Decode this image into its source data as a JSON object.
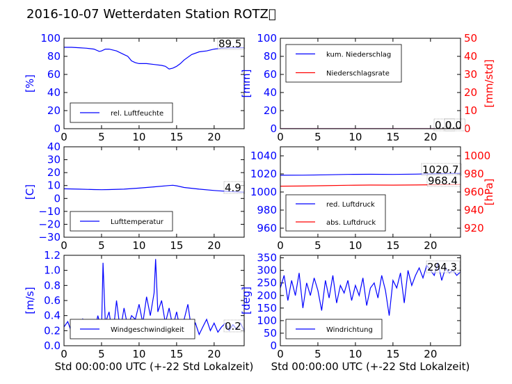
{
  "title": "2016-10-07 Wetterdaten Station ROTZ\u0000",
  "colors": {
    "primary": "#0000ff",
    "secondary": "#ff0000"
  },
  "chart_data": [
    {
      "type": "line",
      "xlim": [
        0,
        24
      ],
      "xticks": [
        "0",
        "5",
        "10",
        "15",
        "20"
      ],
      "ylim": [
        0,
        100
      ],
      "yticks": [
        "0",
        "20",
        "40",
        "60",
        "80",
        "100"
      ],
      "ylabel": "[%]",
      "legend": {
        "placement": "lower-left",
        "entries": [
          "rel. Luftfeuchte"
        ]
      },
      "annotations": [
        "89.5"
      ],
      "series": [
        {
          "name": "rel. Luftfeuchte",
          "color": "#0000ff",
          "x": [
            0,
            1,
            2,
            3,
            4,
            4.7,
            5,
            5.5,
            6,
            7,
            8,
            8.5,
            9,
            9.5,
            10,
            11,
            12,
            13,
            13.5,
            14,
            14.5,
            15,
            15.5,
            16,
            17,
            18,
            19,
            20,
            21,
            22,
            23,
            24
          ],
          "y": [
            90,
            90,
            89.5,
            89,
            88,
            85.5,
            86,
            88,
            88,
            86,
            82,
            80,
            75,
            73,
            72,
            72,
            71,
            70,
            69,
            66,
            67,
            69,
            72,
            76,
            82,
            85,
            86,
            88,
            89,
            89.5,
            89.5,
            89.5
          ]
        }
      ]
    },
    {
      "type": "line",
      "xlim": [
        0,
        24
      ],
      "xticks": [
        "0",
        "5",
        "10",
        "15",
        "20"
      ],
      "ylim": [
        0,
        100
      ],
      "yticks": [
        "0",
        "20",
        "40",
        "60",
        "80",
        "100"
      ],
      "ylabel": "[mm]",
      "y2lim": [
        0,
        50
      ],
      "y2ticks": [
        "0",
        "10",
        "20",
        "30",
        "40",
        "50"
      ],
      "y2label": "[mm/std]",
      "legend": {
        "placement": "upper-left",
        "entries": [
          "kum. Niederschlag",
          "Niederschlagsrate"
        ]
      },
      "annotations": [
        "0.0",
        "0.0"
      ],
      "series": [
        {
          "name": "kum. Niederschlag",
          "color": "#0000ff",
          "axis": "left",
          "x": [
            0,
            24
          ],
          "y": [
            0,
            0
          ]
        },
        {
          "name": "Niederschlagsrate",
          "color": "#ff0000",
          "axis": "right",
          "x": [
            0,
            24
          ],
          "y": [
            0,
            0
          ]
        }
      ]
    },
    {
      "type": "line",
      "xlim": [
        0,
        24
      ],
      "xticks": [
        "0",
        "5",
        "10",
        "15",
        "20"
      ],
      "ylim": [
        -30,
        40
      ],
      "yticks": [
        "−30",
        "−20",
        "−10",
        "0",
        "10",
        "20",
        "30",
        "40"
      ],
      "ylabel": "[C]",
      "legend": {
        "placement": "lower-left",
        "entries": [
          "Lufttemperatur"
        ]
      },
      "annotations": [
        "4.9"
      ],
      "series": [
        {
          "name": "Lufttemperatur",
          "color": "#0000ff",
          "x": [
            0,
            2,
            4,
            5,
            6,
            8,
            10,
            12,
            14,
            14.5,
            15,
            16,
            18,
            20,
            22,
            24
          ],
          "y": [
            7.5,
            7.2,
            6.9,
            6.8,
            6.9,
            7.2,
            8,
            9,
            10,
            10.2,
            9.8,
            8.5,
            7.2,
            6.2,
            5.4,
            4.9
          ]
        }
      ]
    },
    {
      "type": "line",
      "xlim": [
        0,
        24
      ],
      "xticks": [
        "0",
        "5",
        "10",
        "15",
        "20"
      ],
      "ylim": [
        950,
        1050
      ],
      "yticks": [
        "960",
        "980",
        "1000",
        "1020",
        "1040"
      ],
      "y2lim": [
        910,
        1010
      ],
      "y2ticks": [
        "920",
        "940",
        "960",
        "980",
        "1000"
      ],
      "y2label": "[hPa]",
      "legend": {
        "placement": "lower-left",
        "entries": [
          "red. Luftdruck",
          "abs. Luftdruck"
        ]
      },
      "annotations": [
        "1020.7",
        "968.4"
      ],
      "series": [
        {
          "name": "red. Luftdruck",
          "color": "#0000ff",
          "axis": "left",
          "x": [
            0,
            3,
            6,
            9,
            12,
            15,
            18,
            21,
            24
          ],
          "y": [
            1018.5,
            1018.6,
            1019,
            1019.5,
            1019.6,
            1019.5,
            1019.8,
            1020.3,
            1020.7
          ]
        },
        {
          "name": "abs. Luftdruck",
          "color": "#ff0000",
          "axis": "right",
          "x": [
            0,
            3,
            6,
            9,
            12,
            15,
            18,
            21,
            24
          ],
          "y": [
            966.5,
            966.6,
            967,
            967.5,
            967.7,
            967.6,
            967.8,
            968.1,
            968.4
          ]
        }
      ]
    },
    {
      "type": "line",
      "xlim": [
        0,
        24
      ],
      "xticks": [
        "0",
        "5",
        "10",
        "15",
        "20"
      ],
      "xlabel": "Std 00:00:00 UTC (+-22 Std Lokalzeit)",
      "ylim": [
        0,
        1.2
      ],
      "yticks": [
        "0.0",
        "0.2",
        "0.4",
        "0.6",
        "0.8",
        "1.0",
        "1.2"
      ],
      "ylabel": "[m/s]",
      "legend": {
        "placement": "lower-left",
        "entries": [
          "Windgeschwindigkeit"
        ]
      },
      "annotations": [
        "0.2"
      ],
      "series": [
        {
          "name": "Windgeschwindigkeit",
          "color": "#0000ff",
          "x": [
            0,
            0.5,
            1,
            1.5,
            2,
            2.5,
            3,
            3.5,
            4,
            4.5,
            5,
            5.2,
            5.5,
            6,
            6.5,
            7,
            7.5,
            8,
            8.5,
            9,
            9.5,
            10,
            10.5,
            11,
            11.5,
            12,
            12.2,
            12.5,
            13,
            13.5,
            14,
            14.5,
            15,
            15.5,
            16,
            16.5,
            17,
            17.5,
            18,
            18.5,
            19,
            19.5,
            20,
            20.5,
            21,
            21.5,
            22,
            22.5,
            23,
            23.5,
            24
          ],
          "y": [
            0.25,
            0.32,
            0.18,
            0.3,
            0.12,
            0.35,
            0.2,
            0.3,
            0.15,
            0.4,
            0.22,
            1.1,
            0.3,
            0.45,
            0.12,
            0.6,
            0.2,
            0.5,
            0.25,
            0.4,
            0.35,
            0.55,
            0.3,
            0.65,
            0.4,
            0.7,
            1.15,
            0.45,
            0.6,
            0.3,
            0.5,
            0.25,
            0.45,
            0.2,
            0.35,
            0.55,
            0.2,
            0.3,
            0.15,
            0.25,
            0.35,
            0.2,
            0.3,
            0.18,
            0.25,
            0.3,
            0.2,
            0.28,
            0.22,
            0.3,
            0.2
          ]
        }
      ]
    },
    {
      "type": "line",
      "xlim": [
        0,
        24
      ],
      "xticks": [
        "0",
        "5",
        "10",
        "15",
        "20"
      ],
      "xlabel": "Std 00:00:00 UTC (+-22 Std Lokalzeit)",
      "ylim": [
        0,
        360
      ],
      "yticks": [
        "0",
        "50",
        "100",
        "150",
        "200",
        "250",
        "300",
        "350"
      ],
      "ylabel": "[deg]",
      "legend": {
        "placement": "lower-left",
        "entries": [
          "Windrichtung"
        ]
      },
      "annotations": [
        "294.3"
      ],
      "series": [
        {
          "name": "Windrichtung",
          "color": "#0000ff",
          "x": [
            0,
            0.5,
            1,
            1.5,
            2,
            2.5,
            3,
            3.5,
            4,
            4.5,
            5,
            5.5,
            6,
            6.5,
            7,
            7.5,
            8,
            8.5,
            9,
            9.5,
            10,
            10.5,
            11,
            11.5,
            12,
            12.5,
            13,
            13.5,
            14,
            14.5,
            15,
            15.5,
            16,
            16.5,
            17,
            17.5,
            18,
            18.5,
            19,
            19.5,
            20,
            20.5,
            21,
            21.5,
            22,
            22.5,
            23,
            23.5,
            24
          ],
          "y": [
            230,
            280,
            180,
            260,
            200,
            290,
            150,
            250,
            200,
            270,
            220,
            140,
            260,
            190,
            280,
            170,
            240,
            210,
            260,
            180,
            240,
            200,
            270,
            160,
            230,
            250,
            190,
            280,
            220,
            120,
            260,
            230,
            290,
            170,
            300,
            240,
            280,
            310,
            270,
            320,
            300,
            280,
            330,
            260,
            310,
            290,
            300,
            280,
            294
          ]
        }
      ]
    }
  ]
}
